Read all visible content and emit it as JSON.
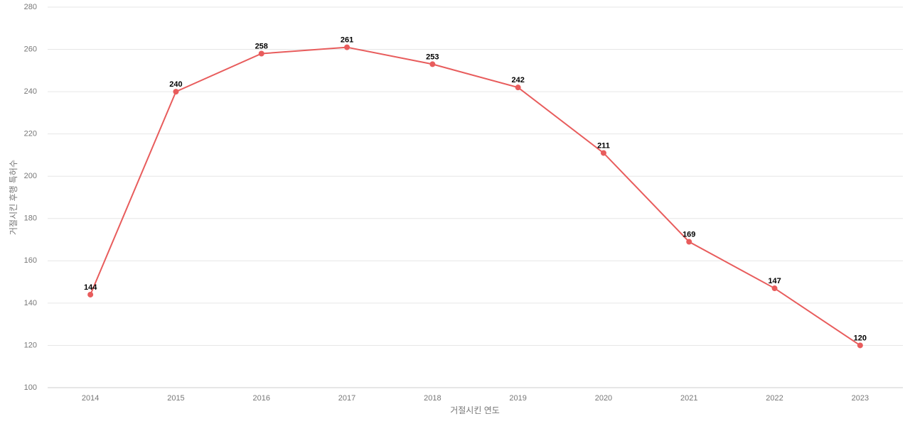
{
  "chart_data": {
    "type": "line",
    "x_label": "거절시킨 연도",
    "y_label": "거절시킨 후행 특허수",
    "categories": [
      "2014",
      "2015",
      "2016",
      "2017",
      "2018",
      "2019",
      "2020",
      "2021",
      "2022",
      "2023"
    ],
    "series": [
      {
        "name": "거절시킨 후행 특허수",
        "color": "#e85c5c",
        "values": [
          144,
          240,
          258,
          261,
          253,
          242,
          211,
          169,
          147,
          120
        ]
      }
    ],
    "ylim": [
      100,
      280
    ],
    "yticks": [
      100,
      120,
      140,
      160,
      180,
      200,
      220,
      240,
      260,
      280
    ],
    "grid": true
  }
}
